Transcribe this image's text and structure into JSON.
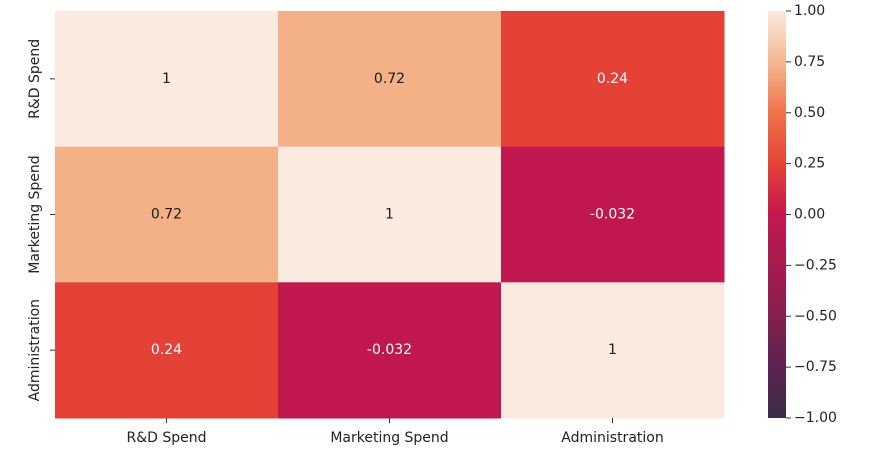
{
  "chart_data": {
    "type": "heatmap",
    "title": "",
    "xlabel": "",
    "ylabel": "",
    "x_categories": [
      "R&D Spend",
      "Marketing Spend",
      "Administration"
    ],
    "y_categories": [
      "R&D Spend",
      "Marketing Spend",
      "Administration"
    ],
    "matrix": [
      [
        1,
        0.72,
        0.24
      ],
      [
        0.72,
        1,
        -0.032
      ],
      [
        0.24,
        -0.032,
        1
      ]
    ],
    "annotations": [
      [
        "1",
        "0.72",
        "0.24"
      ],
      [
        "0.72",
        "1",
        "-0.032"
      ],
      [
        "0.24",
        "-0.032",
        "1"
      ]
    ],
    "vmin": -1,
    "vmax": 1,
    "colorbar_ticks": [
      "1.00",
      "0.75",
      "0.50",
      "0.25",
      "0.00",
      "−0.25",
      "−0.50",
      "−0.75",
      "−1.00"
    ],
    "colormap": "rocket",
    "colormap_stops": [
      {
        "v": -1.0,
        "c": "#3b2d45"
      },
      {
        "v": -0.75,
        "c": "#5c2350"
      },
      {
        "v": -0.5,
        "c": "#84204f"
      },
      {
        "v": -0.25,
        "c": "#a71a50"
      },
      {
        "v": 0.0,
        "c": "#c4174f"
      },
      {
        "v": 0.25,
        "c": "#e54336"
      },
      {
        "v": 0.5,
        "c": "#f0734d"
      },
      {
        "v": 0.75,
        "c": "#f5b88f"
      },
      {
        "v": 1.0,
        "c": "#fbeadf"
      }
    ],
    "annotation_colors": {
      "dark_text": "#1a1a1a",
      "light_text": "#ffffff"
    }
  }
}
